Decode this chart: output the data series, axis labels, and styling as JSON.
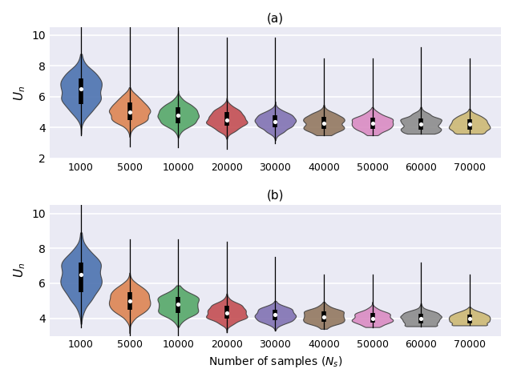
{
  "title_a": "(a)",
  "title_b": "(b)",
  "xlabel": "Number of samples ($N_s$)",
  "ylabel": "$U_n$",
  "categories": [
    1000,
    5000,
    10000,
    20000,
    30000,
    40000,
    50000,
    60000,
    70000
  ],
  "colors": [
    "#4c72b0",
    "#dd8452",
    "#55a868",
    "#c44e52",
    "#8172b3",
    "#937860",
    "#da8bc3",
    "#8c8c8c",
    "#ccb974"
  ],
  "background_color": "#eaeaf4",
  "grid_color": "white",
  "ylim_a": [
    2,
    10.5
  ],
  "ylim_b": [
    3.0,
    10.5
  ],
  "yticks_a": [
    2,
    4,
    6,
    8,
    10
  ],
  "yticks_b": [
    4,
    6,
    8,
    10
  ],
  "violin_params_a": {
    "medians": [
      6.5,
      5.0,
      4.8,
      4.5,
      4.4,
      4.3,
      4.3,
      4.2,
      4.2
    ],
    "q1": [
      5.5,
      4.5,
      4.3,
      4.1,
      4.0,
      3.9,
      3.9,
      3.85,
      3.85
    ],
    "q3": [
      7.2,
      5.6,
      5.3,
      5.0,
      4.8,
      4.7,
      4.65,
      4.6,
      4.55
    ],
    "whisker_lo": [
      3.5,
      2.8,
      2.7,
      2.6,
      3.0,
      3.5,
      3.5,
      3.6,
      3.6
    ],
    "whisker_hi": [
      10.5,
      10.5,
      10.5,
      9.8,
      9.8,
      8.5,
      8.5,
      9.2,
      8.5
    ]
  },
  "violin_params_b": {
    "medians": [
      6.5,
      5.0,
      4.8,
      4.3,
      4.2,
      4.1,
      4.0,
      4.0,
      4.0
    ],
    "q1": [
      5.5,
      4.5,
      4.3,
      4.0,
      3.9,
      3.8,
      3.75,
      3.7,
      3.7
    ],
    "q3": [
      7.2,
      5.5,
      5.2,
      4.7,
      4.5,
      4.4,
      4.3,
      4.25,
      4.2
    ],
    "whisker_lo": [
      3.5,
      3.0,
      3.0,
      3.2,
      3.3,
      3.4,
      3.5,
      3.55,
      3.6
    ],
    "whisker_hi": [
      10.5,
      8.5,
      8.5,
      8.4,
      7.5,
      6.5,
      6.5,
      7.2,
      6.5
    ]
  }
}
